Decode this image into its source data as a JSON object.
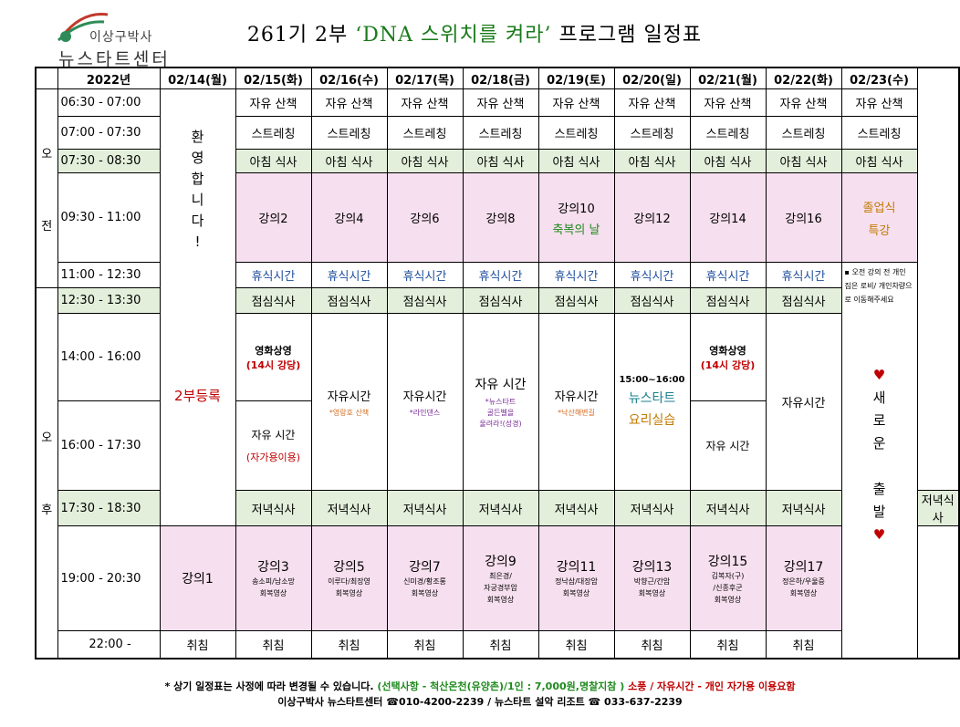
{
  "header": {
    "logo_line1": "이상구박사",
    "logo_line2": "뉴스타트센터",
    "title_pre": "261기 2부 ",
    "title_quote": "‘DNA 스위치를 켜라’",
    "title_post": " 프로그램 일정표"
  },
  "table": {
    "year": "2022년",
    "dates": [
      "02/14(월)",
      "02/15(화)",
      "02/16(수)",
      "02/17(목)",
      "02/18(금)",
      "02/19(토)",
      "02/20(일)",
      "02/21(월)",
      "02/22(화)",
      "02/23(수)"
    ],
    "am_label": [
      "오",
      "전"
    ],
    "pm_label": [
      "오",
      "후"
    ],
    "times": [
      "06:30 - 07:00",
      "07:00 - 07:30",
      "07:30 - 08:30",
      "09:30 - 11:00",
      "11:00 - 12:30",
      "12:30 - 13:30",
      "14:00 - 16:00",
      "16:00 - 17:30",
      "17:30 - 18:30",
      "19:00 - 20:30",
      "22:00 -"
    ],
    "walk": "자유 산책",
    "stretch": "스트레칭",
    "breakfast": "아침 식사",
    "rest": "휴식시간",
    "lunch": "점심식사",
    "dinner": "저녁식사",
    "sleep": "취침",
    "welcome": "환영합니다!",
    "register": "2부등록",
    "morning_lectures": [
      "강의2",
      "강의4",
      "강의6",
      "강의8",
      "강의10",
      "강의12",
      "강의14",
      "강의16"
    ],
    "special_day": "축복의 날",
    "graduation": [
      "졸업식",
      "특강"
    ],
    "evening_lectures": [
      "강의1",
      "강의3",
      "강의5",
      "강의7",
      "강의9",
      "강의11",
      "강의13",
      "강의15",
      "강의17"
    ],
    "evening_notes": [
      [],
      [
        "송소피/남소망",
        "회복영상"
      ],
      [
        "이루다/최장영",
        "회복영상"
      ],
      [
        "신미경/황조롱",
        "회복영상"
      ],
      [
        "최은경/",
        "자궁경부암",
        "회복영상"
      ],
      [
        "정낙삼/대장암",
        "회복영상"
      ],
      [
        "박향근/간암",
        "회복영상"
      ],
      [
        "김복자(구)",
        "/신종후군",
        "회복영상"
      ],
      [
        "정은하/우울증",
        "회복영상"
      ]
    ],
    "movie_title": "영화상영",
    "movie_time": "(14시 강당)",
    "free_time": "자유시간",
    "free_time_spaced": "자유 시간",
    "own_car": "(자가용이용)",
    "wed_sub": "*영랑호 산책",
    "thu_sub": "*라인댄스",
    "fri_sub": [
      "*뉴스타트",
      "골든벨을",
      "울려라!(성경)"
    ],
    "sat_sub": "*낙산해변길",
    "sun_time": "15:00~16:00",
    "sun_title": "뉴스타트",
    "sun_sub": "요리실습",
    "notes": "▪ 오전 강의 전 개인 짐은 로비/ 개인차량으로 이동해주세요",
    "heart": "♥",
    "new_start": [
      "새",
      "로",
      "운",
      "",
      "출",
      "발"
    ]
  },
  "footer": {
    "line1_a": "* 상기 일정표는 사정에 따라 변경될 수 있습니다.",
    "line1_b": "(선택사항 - 척산온천(유양촌)/1인 : 7,000원,명찰지참 )",
    "line1_c": "소풍 / 자유시간 - 개인 자가용 이용요함",
    "line2": "이상구박사 뉴스타트센터 ☎010-4200-2239 /  뉴스타트 설악 리조트 ☎ 033-637-2239"
  },
  "colors": {
    "green_row": "#e3efdb",
    "pink_cell": "#f6dfee",
    "blue_text": "#1f4f9f",
    "red_text": "#c00000",
    "footer_green": "#1e8a1e",
    "footer_red": "#c00000"
  }
}
